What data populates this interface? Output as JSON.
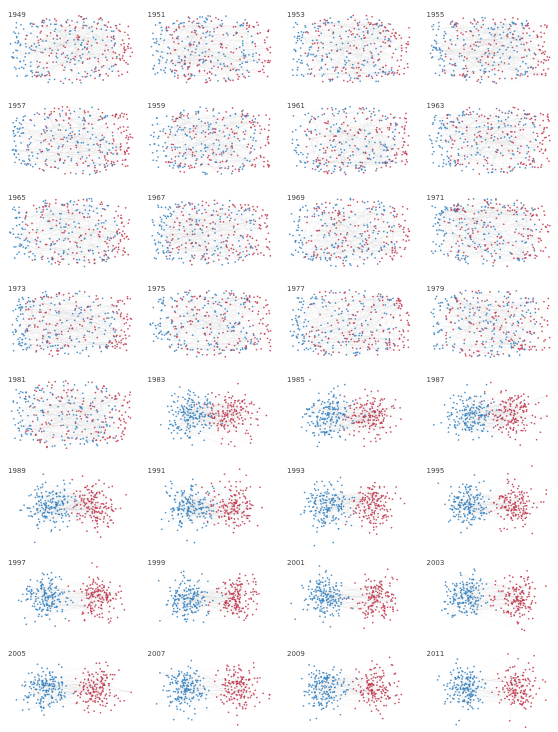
{
  "colors": {
    "democrat": "#2f7fc0",
    "republican": "#c0334a",
    "edge": "#9a9a9a"
  },
  "panels": [
    {
      "year": "1949",
      "sep": 0.0
    },
    {
      "year": "1951",
      "sep": 0.0
    },
    {
      "year": "1953",
      "sep": 0.02
    },
    {
      "year": "1955",
      "sep": 0.05
    },
    {
      "year": "1957",
      "sep": 0.0
    },
    {
      "year": "1959",
      "sep": 0.0
    },
    {
      "year": "1961",
      "sep": 0.05
    },
    {
      "year": "1963",
      "sep": 0.05
    },
    {
      "year": "1965",
      "sep": 0.0
    },
    {
      "year": "1967",
      "sep": 0.0
    },
    {
      "year": "1969",
      "sep": 0.0
    },
    {
      "year": "1971",
      "sep": 0.0
    },
    {
      "year": "1973",
      "sep": 0.0
    },
    {
      "year": "1975",
      "sep": 0.0
    },
    {
      "year": "1977",
      "sep": 0.0
    },
    {
      "year": "1979",
      "sep": 0.0
    },
    {
      "year": "1981",
      "sep": 0.05
    },
    {
      "year": "1983",
      "sep": 0.15
    },
    {
      "year": "1985",
      "sep": 0.25
    },
    {
      "year": "1987",
      "sep": 0.3
    },
    {
      "year": "1989",
      "sep": 0.3
    },
    {
      "year": "1991",
      "sep": 0.3
    },
    {
      "year": "1993",
      "sep": 0.4
    },
    {
      "year": "1995",
      "sep": 0.5
    },
    {
      "year": "1997",
      "sep": 0.55
    },
    {
      "year": "1999",
      "sep": 0.5
    },
    {
      "year": "2001",
      "sep": 0.55
    },
    {
      "year": "2003",
      "sep": 0.6
    },
    {
      "year": "2005",
      "sep": 0.6
    },
    {
      "year": "2007",
      "sep": 0.65
    },
    {
      "year": "2009",
      "sep": 0.6
    },
    {
      "year": "2011",
      "sep": 0.7
    }
  ]
}
